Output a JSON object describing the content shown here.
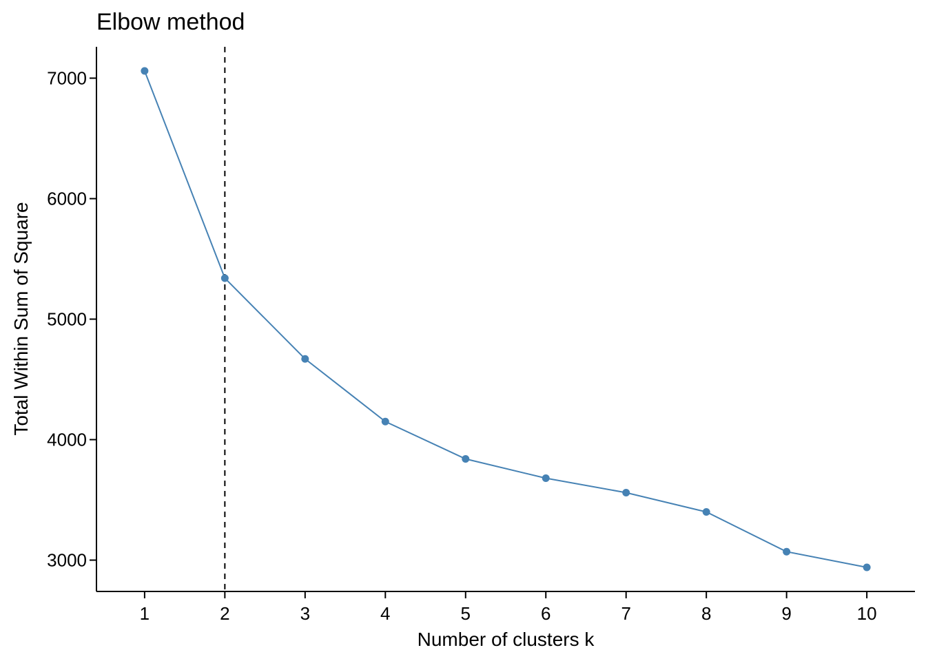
{
  "chart_data": {
    "type": "line",
    "title": "Elbow method",
    "xlabel": "Number of clusters k",
    "ylabel": "Total Within Sum of Square",
    "x": [
      1,
      2,
      3,
      4,
      5,
      6,
      7,
      8,
      9,
      10
    ],
    "series": [
      {
        "values": [
          7060,
          5340,
          4670,
          4150,
          3840,
          3680,
          3560,
          3400,
          3070,
          2940
        ],
        "color": "#4682B4"
      }
    ],
    "xticks": [
      1,
      2,
      3,
      4,
      5,
      6,
      7,
      8,
      9,
      10
    ],
    "xtick_labels": [
      "1",
      "2",
      "3",
      "4",
      "5",
      "6",
      "7",
      "8",
      "9",
      "10"
    ],
    "yticks": [
      3000,
      4000,
      5000,
      6000,
      7000
    ],
    "ytick_labels": [
      "3000",
      "4000",
      "5000",
      "6000",
      "7000"
    ],
    "xlim": [
      0.4,
      10.6
    ],
    "ylim": [
      2740,
      7260
    ],
    "reference_line": {
      "x": 2,
      "style": "dashed",
      "color": "#000000"
    },
    "grid": false,
    "legend": "none"
  }
}
